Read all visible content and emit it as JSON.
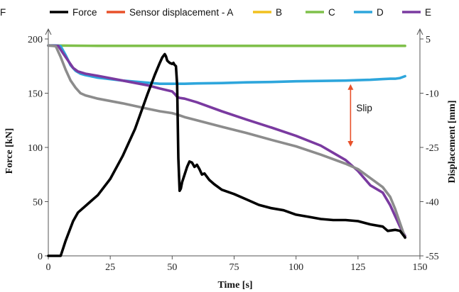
{
  "chart_data": {
    "type": "line",
    "xlabel": "Time [s]",
    "ylabel": "Force [kN]",
    "y2label": "Displacement [mm]",
    "xlim": [
      0,
      150
    ],
    "ylim": [
      0,
      200
    ],
    "y2lim": [
      -55,
      5
    ],
    "xticks": [
      0,
      25,
      50,
      75,
      100,
      125,
      150
    ],
    "yticks": [
      0,
      50,
      100,
      150,
      200
    ],
    "y2ticks": [
      -55,
      -40,
      -25,
      -10,
      5
    ],
    "grid": false,
    "legend_position": "top",
    "annotation": {
      "text": "Slip",
      "x": 122,
      "y2_from": -7.5,
      "y2_to": -24.8,
      "color": "#e8512a"
    },
    "series": [
      {
        "name": "Force",
        "axis": "left",
        "color": "#000000",
        "x": [
          0,
          5,
          6,
          7,
          8,
          10,
          12,
          15,
          20,
          25,
          30,
          35,
          40,
          43,
          45,
          46,
          47,
          47.5,
          48,
          49,
          50,
          50.5,
          51,
          51.5,
          52,
          52.5,
          53,
          53.5,
          54,
          55,
          56,
          57,
          58,
          59,
          60,
          61,
          62,
          63,
          65,
          67,
          70,
          75,
          80,
          85,
          90,
          95,
          100,
          105,
          110,
          115,
          120,
          125,
          130,
          135,
          137,
          140,
          142,
          143,
          144
        ],
        "y": [
          0,
          0,
          7,
          14,
          20,
          32,
          40,
          46,
          56,
          71,
          92,
          117,
          149,
          167,
          178,
          183,
          186,
          184,
          180,
          178,
          177,
          178,
          176,
          175,
          158,
          90,
          60,
          62,
          68,
          75,
          82,
          87,
          86,
          82,
          84,
          80,
          75,
          76,
          70,
          66,
          61,
          57,
          52,
          47,
          44,
          42,
          38,
          36,
          34,
          33,
          33,
          32,
          29,
          27,
          23,
          24,
          23,
          20,
          17
        ]
      },
      {
        "name": "Sensor displacement - A",
        "axis": "right",
        "color": "#e8512a",
        "x": [],
        "y": []
      },
      {
        "name": "B",
        "axis": "right",
        "color": "#f2c01e",
        "x": [],
        "y": []
      },
      {
        "name": "C",
        "axis": "right",
        "color": "#7fc04a",
        "x": [
          0,
          20,
          40,
          60,
          80,
          100,
          120,
          140,
          144
        ],
        "y": [
          3.2,
          3.1,
          3.1,
          3.1,
          3.1,
          3.1,
          3.1,
          3.1,
          3.1
        ]
      },
      {
        "name": "D",
        "axis": "right",
        "color": "#2ea6dc",
        "x": [
          0,
          3,
          5,
          7,
          9,
          11,
          13,
          15,
          20,
          30,
          40,
          45,
          50,
          55,
          60,
          70,
          80,
          90,
          100,
          110,
          120,
          125,
          130,
          135,
          138,
          140,
          142,
          144
        ],
        "y": [
          3.2,
          3.2,
          3.0,
          0.5,
          -2.3,
          -3.8,
          -4.6,
          -5.0,
          -5.7,
          -6.5,
          -7.1,
          -7.4,
          -7.4,
          -7.4,
          -7.3,
          -7.2,
          -7.0,
          -6.9,
          -6.7,
          -6.6,
          -6.5,
          -6.4,
          -6.3,
          -6.1,
          -6.0,
          -6.0,
          -5.8,
          -5.3
        ]
      },
      {
        "name": "E",
        "axis": "right",
        "color": "#7a3aa0",
        "x": [
          0,
          4,
          6,
          8,
          10,
          12,
          15,
          20,
          30,
          40,
          45,
          50,
          51,
          52,
          53,
          55,
          60,
          70,
          80,
          90,
          100,
          110,
          115,
          120,
          125,
          130,
          135,
          138,
          140,
          142,
          144
        ],
        "y": [
          3.2,
          3.1,
          1.0,
          -1.0,
          -3.0,
          -4.0,
          -4.6,
          -5.2,
          -6.5,
          -7.8,
          -8.7,
          -9.5,
          -10.2,
          -11.0,
          -11.3,
          -11.5,
          -12.5,
          -15.0,
          -17.3,
          -19.5,
          -21.8,
          -24.5,
          -26.5,
          -28.5,
          -31.5,
          -35.5,
          -37.5,
          -41.0,
          -44.0,
          -47.0,
          -49.5
        ]
      },
      {
        "name": "F",
        "axis": "right",
        "color": "#8c8c8c",
        "x": [
          0,
          3,
          5,
          7,
          9,
          11,
          13,
          15,
          20,
          30,
          40,
          45,
          50,
          52,
          55,
          60,
          70,
          80,
          90,
          100,
          110,
          120,
          125,
          130,
          135,
          138,
          140,
          142,
          144
        ],
        "y": [
          3.2,
          3.0,
          0.0,
          -3.5,
          -6.5,
          -8.5,
          -10.0,
          -10.6,
          -11.5,
          -12.8,
          -14.3,
          -15.0,
          -15.5,
          -15.9,
          -16.6,
          -17.5,
          -19.3,
          -21.0,
          -22.9,
          -24.7,
          -27.0,
          -29.5,
          -31.0,
          -33.5,
          -36.0,
          -38.7,
          -42.0,
          -46.0,
          -50.0
        ]
      }
    ]
  }
}
